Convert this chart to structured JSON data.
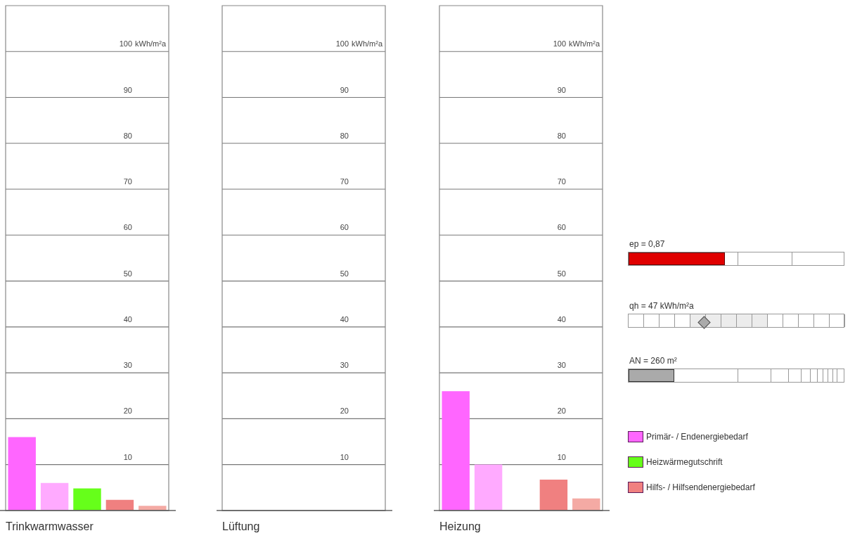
{
  "chart_data": [
    {
      "type": "bar",
      "xlabel": "Trinkwarmwasser",
      "ylabel": "kWh/m²a",
      "categories": [
        null,
        null,
        null,
        null,
        null
      ],
      "yticks": [
        10,
        20,
        30,
        40,
        50,
        60,
        70,
        80,
        90,
        100
      ],
      "series": [
        {
          "color": "#ff66ff",
          "values": [
            16,
            null,
            null,
            null,
            null
          ]
        },
        {
          "color": "#ffaaff",
          "values": [
            null,
            6,
            null,
            null,
            null
          ]
        },
        {
          "color": "#66ff1a",
          "values": [
            null,
            null,
            4.8,
            null,
            null
          ]
        },
        {
          "color": "#f08080",
          "values": [
            null,
            null,
            null,
            2.3,
            null
          ]
        },
        {
          "color": "#f4aaa4",
          "values": [
            null,
            null,
            null,
            null,
            1
          ]
        }
      ],
      "ylim": [
        0,
        110
      ],
      "grid": "y"
    },
    {
      "type": "bar",
      "xlabel": "Lüftung",
      "ylabel": "kWh/m²a",
      "categories": [
        null,
        null,
        null,
        null,
        null
      ],
      "yticks": [
        10,
        20,
        30,
        40,
        50,
        60,
        70,
        80,
        90,
        100
      ],
      "series": [
        {
          "color": "#ff66ff",
          "values": [
            0,
            null,
            null,
            null,
            null
          ]
        },
        {
          "color": "#ffaaff",
          "values": [
            null,
            0,
            null,
            null,
            null
          ]
        },
        {
          "color": "#66ff1a",
          "values": [
            null,
            null,
            0,
            null,
            null
          ]
        },
        {
          "color": "#f08080",
          "values": [
            null,
            null,
            null,
            0,
            null
          ]
        },
        {
          "color": "#f4aaa4",
          "values": [
            null,
            null,
            null,
            null,
            0
          ]
        }
      ],
      "ylim": [
        0,
        110
      ],
      "grid": "y"
    },
    {
      "type": "bar",
      "xlabel": "Heizung",
      "ylabel": "kWh/m²a",
      "categories": [
        null,
        null,
        null,
        null,
        null
      ],
      "yticks": [
        10,
        20,
        30,
        40,
        50,
        60,
        70,
        80,
        90,
        100
      ],
      "series": [
        {
          "name": "Primär- / Endenergiebedarf",
          "color": "#ff66ff",
          "values": [
            26,
            null,
            null,
            null,
            null
          ]
        },
        {
          "color": "#ffaaff",
          "values": [
            null,
            10,
            null,
            null,
            null
          ]
        },
        {
          "name": "Heizwärmegutschrift",
          "color": "#66ff1a",
          "values": [
            null,
            null,
            0,
            null,
            null
          ]
        },
        {
          "name": "Hilfs- / Hilfsendenergiebedarf",
          "color": "#f08080",
          "values": [
            null,
            null,
            null,
            6.7,
            null
          ]
        },
        {
          "color": "#f4aaa4",
          "values": [
            null,
            null,
            null,
            null,
            2.6
          ]
        }
      ],
      "ylim": [
        0,
        110
      ],
      "grid": "y",
      "legend": "right"
    },
    {
      "type": "other",
      "annotations": [
        "ep = 0,87",
        "qh = 47 kWh/m²a",
        "AN = 260 m²"
      ]
    }
  ]
}
